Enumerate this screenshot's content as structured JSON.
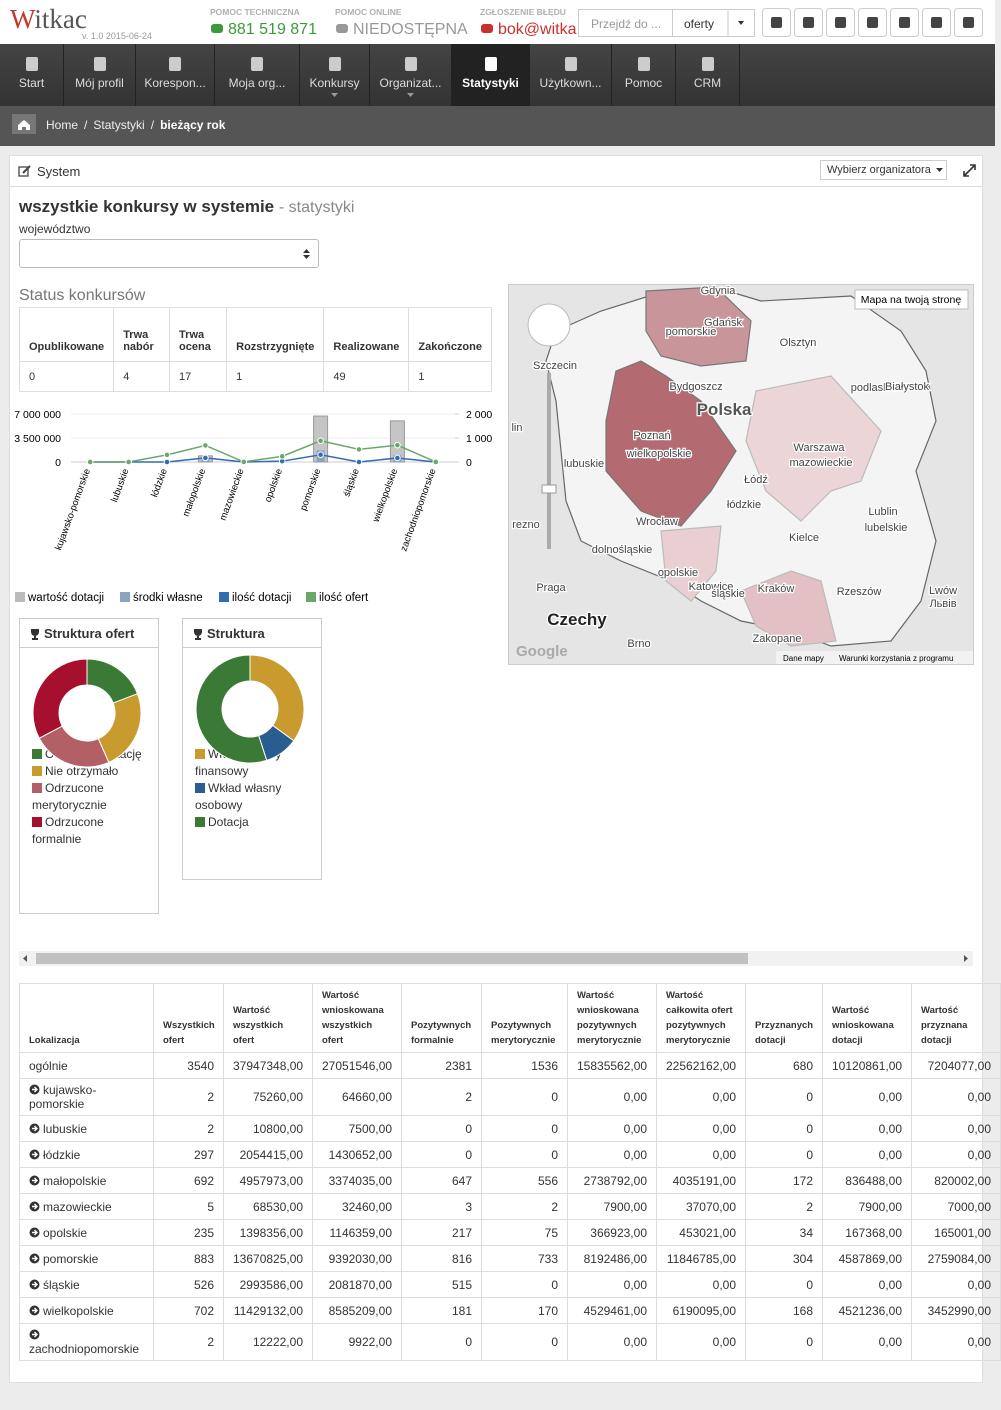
{
  "header": {
    "logo": "Witkac",
    "version": "v. 1.0 2015-06-24",
    "help": [
      {
        "label": "POMOC TECHNICZNA",
        "value": "881 519 871"
      },
      {
        "label": "POMOC ONLINE",
        "value": "NIEDOSTĘPNA"
      },
      {
        "label": "ZGŁOSZENIE BŁĘDU",
        "value": "bok@witka"
      }
    ],
    "search_placeholder": "Przejdź do ...",
    "search_scope": "oferty"
  },
  "nav": {
    "items": [
      "Start",
      "Mój profil",
      "Korespon...",
      "Moja org...",
      "Konkursy",
      "Organizat...",
      "Statystyki",
      "Użytkown...",
      "Pomoc",
      "CRM"
    ],
    "active": 6
  },
  "breadcrumb": {
    "items": [
      "Home",
      "Statystyki",
      "bieżący rok"
    ],
    "separator": "/"
  },
  "panel": {
    "title": "System",
    "organizer_button": "Wybierz organizatora"
  },
  "heading": {
    "title": "wszystkie konkursy w systemie",
    "subtitle": "- statystyki",
    "region_label": "województwo"
  },
  "status": {
    "title": "Status konkursów",
    "headers": [
      "Opublikowane",
      "Trwa nabór",
      "Trwa ocena",
      "Rozstrzygnięte",
      "Realizowane",
      "Zakończone"
    ],
    "values": [
      0,
      4,
      17,
      1,
      49,
      1
    ]
  },
  "chart_data": [
    {
      "type": "bar",
      "categories": [
        "kujawsko-pomorskie",
        "lubuskie",
        "łódzkie",
        "małopolskie",
        "mazowieckie",
        "opolskie",
        "pomorskie",
        "śląskie",
        "wielkopolskie",
        "zachodniopomorskie"
      ],
      "series": [
        {
          "name": "wartość dotacji",
          "color": "#bbbbbb",
          "values": [
            0,
            0,
            0,
            900000,
            0,
            0,
            6700000,
            0,
            6000000,
            0
          ]
        },
        {
          "name": "środki własne",
          "color": "#8aa4be",
          "values": [
            0,
            0,
            0,
            600000,
            0,
            0,
            1700000,
            0,
            1000000,
            0
          ]
        },
        {
          "name": "ilość dotacji",
          "color": "#2f6db5",
          "type": "line",
          "axis": "y2",
          "values": [
            0,
            0,
            0,
            172,
            2,
            34,
            304,
            0,
            168,
            0
          ]
        },
        {
          "name": "ilość ofert",
          "color": "#6aa86a",
          "type": "line",
          "axis": "y2",
          "values": [
            2,
            2,
            297,
            692,
            5,
            235,
            883,
            526,
            702,
            2
          ]
        }
      ],
      "ylim": [
        0,
        7000000
      ],
      "yticks": [
        0,
        {
          "value": 3500000,
          "label": "3 500 000"
        },
        {
          "value": 7000000,
          "label": "7 000 000"
        }
      ],
      "y2lim": [
        0,
        2000
      ],
      "y2ticks": [
        0,
        {
          "value": 1000,
          "label": "1 000"
        },
        {
          "value": 2000,
          "label": "2 000"
        }
      ],
      "grid": true
    },
    {
      "type": "donut",
      "title": "Struktura ofert",
      "categories": [
        "Otrzymało dotację",
        "Nie otrzymało",
        "Odrzucone merytorycznie",
        "Odrzucone formalnie"
      ],
      "values": [
        680,
        856,
        845,
        1159
      ],
      "colors": [
        "#3a7a36",
        "#c99a2e",
        "#b35f66",
        "#a60f2d"
      ]
    },
    {
      "type": "donut",
      "title": "Struktura",
      "categories": [
        "Wkład własny finansowy",
        "Wkład własny osobowy",
        "Dotacja"
      ],
      "values": [
        35,
        10,
        55
      ],
      "colors": [
        "#c99a2e",
        "#2a5d8f",
        "#3a7a36"
      ]
    }
  ],
  "map": {
    "labels": [
      "Gdynia",
      "Gdańsk",
      "pomorskie",
      "Olsztyn",
      "Szczecin",
      "Bydgoszcz",
      "podlaskie",
      "Białystok",
      "Polska",
      "Poznań",
      "wielkopolskie",
      "Warszawa",
      "mazowieckie",
      "lin",
      "lubuskie",
      "Łódź",
      "łódzkie",
      "Lublin",
      "lubelskie",
      "rezno",
      "Wrocław",
      "Kielce",
      "dolnośląskie",
      "opolskie",
      "Katowice",
      "śląskie",
      "Kraków",
      "Rzeszów",
      "Lwów",
      "Львів",
      "Praga",
      "Czechy",
      "Brno",
      "Zakopane"
    ],
    "link": "Mapa na twoją stronę",
    "footer": [
      "Dane mapy",
      "Warunki korzystania z programu"
    ],
    "logo": "Google"
  },
  "table": {
    "headers": [
      "Lokalizacja",
      "Wszystkich ofert",
      "Wartość wszystkich ofert",
      "Wartość wnioskowana wszystkich ofert",
      "Pozytywnych formalnie",
      "Pozytywnych merytorycznie",
      "Wartość wnioskowana pozytywnych merytorycznie",
      "Wartość całkowita ofert pozytywnych merytorycznie",
      "Przyznanych dotacji",
      "Wartość wnioskowana dotacji",
      "Wartość przyznana dotacji"
    ],
    "rows": [
      [
        "ogólnie",
        "3540",
        "37947348,00",
        "27051546,00",
        "2381",
        "1536",
        "15835562,00",
        "22562162,00",
        "680",
        "10120861,00",
        "7204077,00"
      ],
      [
        "kujawsko-pomorskie",
        "2",
        "75260,00",
        "64660,00",
        "2",
        "0",
        "0,00",
        "0,00",
        "0",
        "0,00",
        "0,00"
      ],
      [
        "lubuskie",
        "2",
        "10800,00",
        "7500,00",
        "0",
        "0",
        "0,00",
        "0,00",
        "0",
        "0,00",
        "0,00"
      ],
      [
        "łódzkie",
        "297",
        "2054415,00",
        "1430652,00",
        "0",
        "0",
        "0,00",
        "0,00",
        "0",
        "0,00",
        "0,00"
      ],
      [
        "małopolskie",
        "692",
        "4957973,00",
        "3374035,00",
        "647",
        "556",
        "2738792,00",
        "4035191,00",
        "172",
        "836488,00",
        "820002,00"
      ],
      [
        "mazowieckie",
        "5",
        "68530,00",
        "32460,00",
        "3",
        "2",
        "7900,00",
        "37070,00",
        "2",
        "7900,00",
        "7000,00"
      ],
      [
        "opolskie",
        "235",
        "1398356,00",
        "1146359,00",
        "217",
        "75",
        "366923,00",
        "453021,00",
        "34",
        "167368,00",
        "165001,00"
      ],
      [
        "pomorskie",
        "883",
        "13670825,00",
        "9392030,00",
        "816",
        "733",
        "8192486,00",
        "11846785,00",
        "304",
        "4587869,00",
        "2759084,00"
      ],
      [
        "śląskie",
        "526",
        "2993586,00",
        "2081870,00",
        "515",
        "0",
        "0,00",
        "0,00",
        "0",
        "0,00",
        "0,00"
      ],
      [
        "wielkopolskie",
        "702",
        "11429132,00",
        "8585209,00",
        "181",
        "170",
        "4529461,00",
        "6190095,00",
        "168",
        "4521236,00",
        "3452990,00"
      ],
      [
        "zachodniopomorskie",
        "2",
        "12222,00",
        "9922,00",
        "0",
        "0",
        "0,00",
        "0,00",
        "0",
        "0,00",
        "0,00"
      ]
    ]
  }
}
